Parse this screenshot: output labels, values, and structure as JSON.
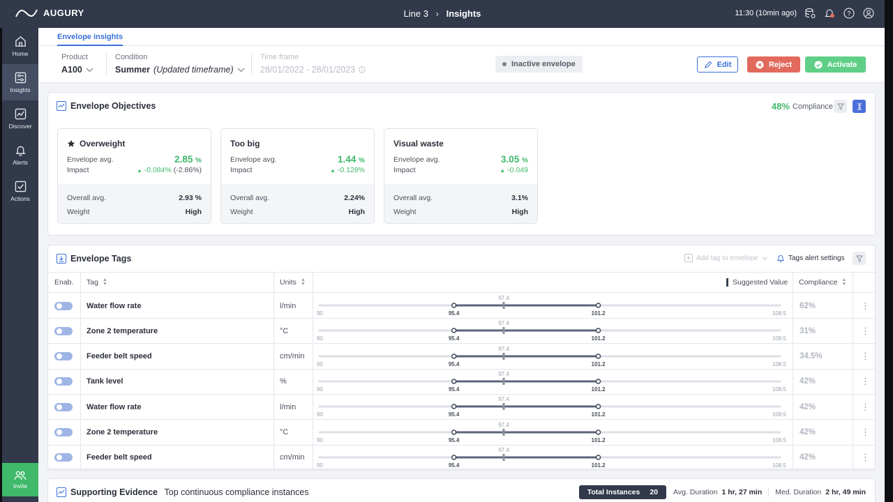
{
  "topbar": {
    "logo_text": "AUGURY",
    "breadcrumb_parent": "Line 3",
    "breadcrumb_current": "Insights",
    "time": "11:30 (10min ago)"
  },
  "sidebar": {
    "items": [
      {
        "label": "Home",
        "icon": "home-icon"
      },
      {
        "label": "Insights",
        "icon": "insights-icon",
        "active": true
      },
      {
        "label": "Discover",
        "icon": "discover-icon"
      },
      {
        "label": "Alerts",
        "icon": "bell-icon"
      },
      {
        "label": "Actions",
        "icon": "check-square-icon"
      }
    ],
    "invite_label": "Invite"
  },
  "header": {
    "tab_label": "Envelope insights",
    "product_label": "Product",
    "product_value": "A100",
    "condition_label": "Condition",
    "condition_value": "Summer",
    "condition_note": "(Updated timeframe)",
    "timeframe_label": "Time frame",
    "timeframe_value": "28/01/2022 - 28/01/2023",
    "status_badge": "Inactive envelope",
    "edit_label": "Edit",
    "reject_label": "Reject",
    "activate_label": "Activate"
  },
  "objectives": {
    "title": "Envelope Objectives",
    "compliance_value": "48%",
    "compliance_label": "Compliance",
    "cards": [
      {
        "name": "Overweight",
        "starred": true,
        "env_label": "Envelope avg.",
        "env_value": "2.85",
        "env_unit": "%",
        "impact_label": "Impact",
        "impact_value": "-0.084%",
        "impact_extra": "(-2.86%)",
        "overall_label": "Overall avg.",
        "overall_value": "2.93 %",
        "weight_label": "Weight",
        "weight_value": "High"
      },
      {
        "name": "Too big",
        "starred": false,
        "env_label": "Envelope avg.",
        "env_value": "1.44",
        "env_unit": "%",
        "impact_label": "Impact",
        "impact_value": "-0.128%",
        "impact_extra": "",
        "overall_label": "Overall avg.",
        "overall_value": "2.24%",
        "weight_label": "Weight",
        "weight_value": "High"
      },
      {
        "name": "Visual waste",
        "starred": false,
        "env_label": "Envelope avg.",
        "env_value": "3.05",
        "env_unit": "%",
        "impact_label": "Impact",
        "impact_value": "-0.049",
        "impact_extra": "",
        "overall_label": "Overall avg.",
        "overall_value": "3.1%",
        "weight_label": "Weight",
        "weight_value": "High"
      }
    ]
  },
  "tags": {
    "title": "Envelope Tags",
    "add_tag_label": "Add tag to envelope",
    "alert_settings_label": "Tags alert settings",
    "columns": {
      "enab": "Enab.",
      "tag": "Tag",
      "units": "Units",
      "suggested": "Suggested Value",
      "compliance": "Compliance"
    },
    "range": {
      "min": 90,
      "max": 108.5,
      "low": 95.4,
      "high": 101.2,
      "suggested": 97.4
    },
    "labels": {
      "min": "90",
      "max": "108.5",
      "low": "95.4",
      "high": "101.2",
      "suggested": "97.4"
    },
    "rows": [
      {
        "tag": "Water flow rate",
        "units": "l/min",
        "compliance": "62%",
        "enabled": true
      },
      {
        "tag": "Zone 2 temperature",
        "units": "°C",
        "compliance": "31%",
        "enabled": true
      },
      {
        "tag": "Feeder belt speed",
        "units": "cm/min",
        "compliance": "34.5%",
        "enabled": true
      },
      {
        "tag": "Tank level",
        "units": "%",
        "compliance": "42%",
        "enabled": true
      },
      {
        "tag": "Water flow rate",
        "units": "l/min",
        "compliance": "42%",
        "enabled": true
      },
      {
        "tag": "Zone 2 temperature",
        "units": "°C",
        "compliance": "42%",
        "enabled": true
      },
      {
        "tag": "Feeder belt speed",
        "units": "cm/min",
        "compliance": "42%",
        "enabled": true
      }
    ]
  },
  "evidence": {
    "title": "Supporting Evidence",
    "subtitle": "Top continuous compliance instances",
    "total_label": "Total Instances",
    "total_value": "20",
    "avg_label": "Avg. Duration",
    "avg_value": "1 hr, 27 min",
    "med_label": "Med. Duration",
    "med_value": "2 hr, 49 min"
  }
}
